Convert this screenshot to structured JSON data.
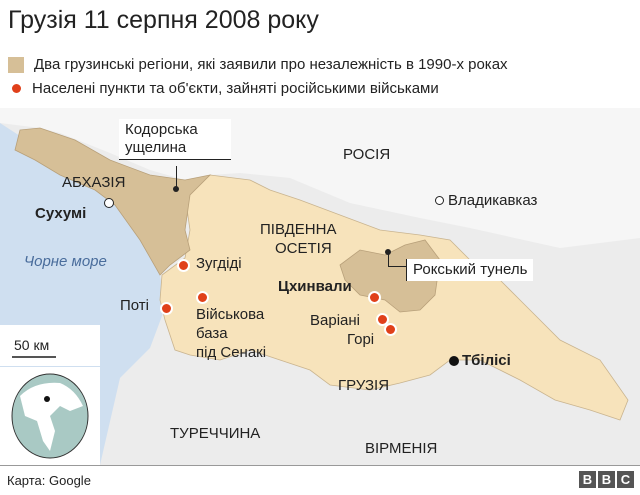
{
  "title": "Грузія 11 серпня 2008 року",
  "legend": [
    {
      "label": "Два грузинські регіони, які заявили про незалежність в 1990-х роках",
      "color": "#d6bf97"
    },
    {
      "label": "Населені пункти та об'єкти, зайняті російськими військами",
      "color": "#e0401a"
    }
  ],
  "map": {
    "regions": {
      "russia": "РОСІЯ",
      "abkhazia": "АБХАЗІЯ",
      "south_ossetia_1": "ПІВДЕННА",
      "south_ossetia_2": "ОСЕТІЯ",
      "georgia": "ГРУЗІЯ",
      "turkey": "ТУРЕЧЧИНА",
      "armenia": "ВІРМЕНІЯ"
    },
    "sea": "Чорне море",
    "cities": {
      "sukhumi": "Сухумі",
      "vladikavkaz": "Владикавказ",
      "tskhinvali": "Цхинвали",
      "tbilisi": "Тбілісі"
    },
    "occupied": {
      "zugdidi": "Зугдіді",
      "poti": "Поті",
      "senaki_1": "Військова",
      "senaki_2": "база",
      "senaki_3": "під Сенакі",
      "variani": "Варіані",
      "gori": "Горі"
    },
    "callouts": {
      "kodori_1": "Кодорська",
      "kodori_2": "ущелина",
      "roki": "Рокський тунель"
    },
    "scale": "50 км",
    "colors": {
      "sea": "#cfdff0",
      "georgia": "#f7e3bb",
      "disputed": "#d6bf97",
      "neighbors": "#ececec",
      "occupied": "#e0401a"
    }
  },
  "footer": {
    "credit": "Карта: Google",
    "logo": [
      "B",
      "B",
      "C"
    ]
  }
}
